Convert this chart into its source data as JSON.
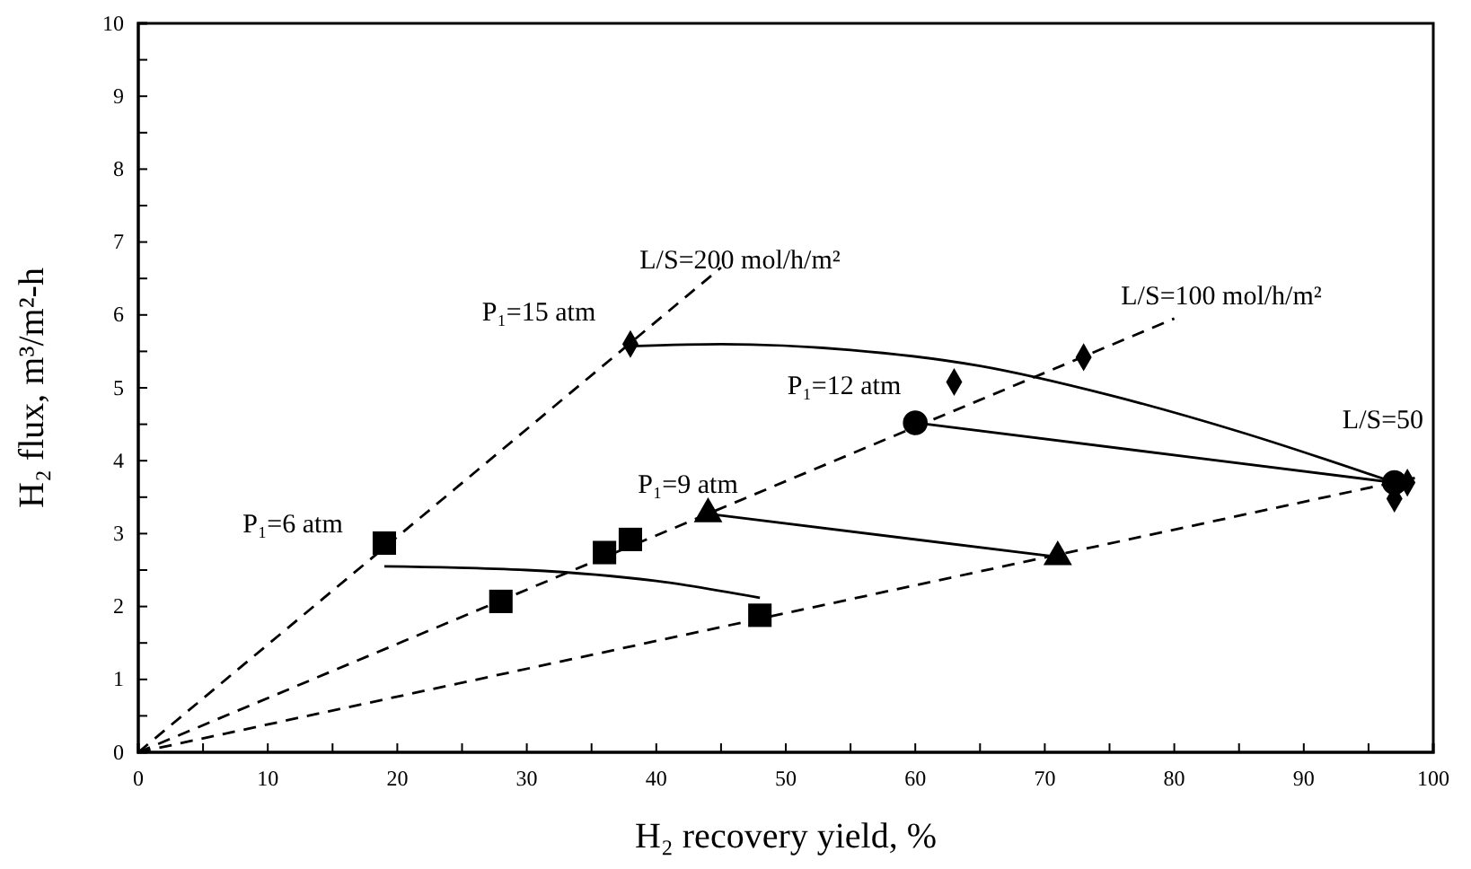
{
  "chart_data": {
    "type": "scatter",
    "xlabel": "H₂ recovery yield, %",
    "ylabel": "H₂ flux, m³/m²-h",
    "xlim": [
      0,
      100
    ],
    "ylim": [
      0,
      10
    ],
    "xticks": [
      0,
      {
        "value": 5,
        "label": null
      },
      10,
      {
        "value": 15,
        "label": null
      },
      20,
      {
        "value": 25,
        "label": null
      },
      30,
      {
        "value": 35,
        "label": null
      },
      40,
      {
        "value": 45,
        "label": null
      },
      50,
      {
        "value": 55,
        "label": null
      },
      60,
      {
        "value": 65,
        "label": null
      },
      70,
      {
        "value": 75,
        "label": null
      },
      80,
      {
        "value": 85,
        "label": null
      },
      90,
      {
        "value": 95,
        "label": null
      },
      100
    ],
    "yticks": [
      0,
      {
        "value": 0.5,
        "label": null
      },
      1,
      {
        "value": 1.5,
        "label": null
      },
      2,
      {
        "value": 2.5,
        "label": null
      },
      3,
      {
        "value": 3.5,
        "label": null
      },
      4,
      {
        "value": 4.5,
        "label": null
      },
      5,
      {
        "value": 5.5,
        "label": null
      },
      6,
      {
        "value": 6.5,
        "label": null
      },
      7,
      {
        "value": 7.5,
        "label": null
      },
      8,
      {
        "value": 8.5,
        "label": null
      },
      9,
      {
        "value": 9.5,
        "label": null
      },
      10
    ],
    "grid": false,
    "series": [
      {
        "type": "line",
        "color": "#000000",
        "line_style": "dashed",
        "marker": "none",
        "x": [
          0,
          45
        ],
        "values": [
          0,
          6.65
        ]
      },
      {
        "type": "line",
        "color": "#000000",
        "line_style": "dashed",
        "marker": "none",
        "x": [
          0,
          80
        ],
        "values": [
          0,
          5.95
        ]
      },
      {
        "type": "line",
        "color": "#000000",
        "line_style": "dashed",
        "marker": "none",
        "x": [
          0,
          99
        ],
        "values": [
          0,
          3.78
        ]
      },
      {
        "type": "line",
        "color": "#000000",
        "line_style": "solid",
        "marker": "none",
        "x": [
          19,
          30,
          40,
          48
        ],
        "values": [
          2.55,
          2.5,
          2.35,
          2.12
        ]
      },
      {
        "type": "line",
        "color": "#000000",
        "line_style": "solid",
        "marker": "none",
        "x": [
          44,
          71
        ],
        "values": [
          3.27,
          2.68
        ]
      },
      {
        "type": "line",
        "color": "#000000",
        "line_style": "solid",
        "marker": "none",
        "x": [
          60,
          97
        ],
        "values": [
          4.52,
          3.7
        ]
      },
      {
        "type": "line",
        "color": "#000000",
        "line_style": "solid",
        "marker": "none",
        "x": [
          38,
          45,
          55,
          65,
          75,
          85,
          97
        ],
        "values": [
          5.57,
          5.6,
          5.52,
          5.3,
          4.9,
          4.4,
          3.7
        ]
      },
      {
        "color": "#000000",
        "marker": "square",
        "x": [
          19,
          28,
          36,
          38,
          48
        ],
        "values": [
          2.87,
          2.07,
          2.74,
          2.92,
          1.88
        ]
      },
      {
        "color": "#000000",
        "marker": "triangle",
        "x": [
          44,
          71
        ],
        "values": [
          3.27,
          2.68
        ]
      },
      {
        "color": "#000000",
        "marker": "circle",
        "x": [
          60,
          97
        ],
        "values": [
          4.52,
          3.7
        ]
      },
      {
        "color": "#000000",
        "marker": "diamond",
        "x": [
          38,
          63,
          73,
          97,
          98
        ],
        "values": [
          5.6,
          5.08,
          5.42,
          3.48,
          3.7
        ]
      }
    ],
    "annotations": [
      "P₁=15 atm",
      "P₁=12 atm",
      "P₁=9 atm",
      "P₁=6 atm",
      "L/S=200 mol/h/m²",
      "L/S=100 mol/h/m²",
      "L/S=50"
    ]
  }
}
